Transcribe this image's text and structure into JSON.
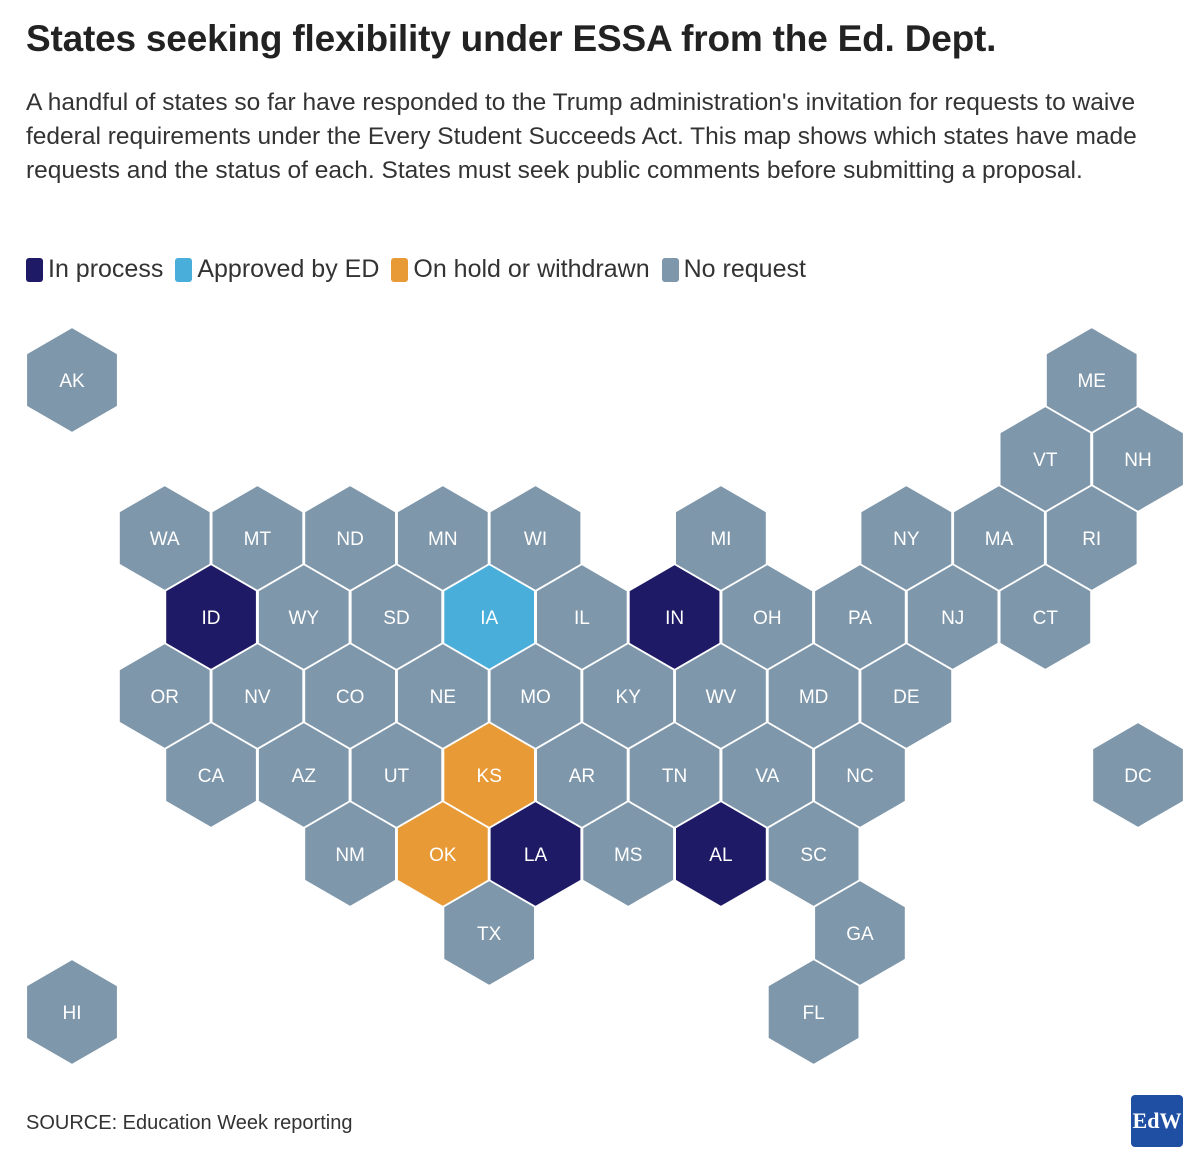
{
  "title": "States seeking flexibility under ESSA from the Ed. Dept.",
  "subtitle": "A handful of states so far have responded to the Trump administration's invitation for requests to waive federal requirements under the Every Student Succeeds Act. This map shows which states have made requests and the status of each. States must seek public comments before submitting a proposal.",
  "legend": [
    {
      "key": "in_process",
      "label": "In process",
      "color": "#1f1a66"
    },
    {
      "key": "approved",
      "label": "Approved by ED",
      "color": "#4aaedb"
    },
    {
      "key": "on_hold",
      "label": "On hold or withdrawn",
      "color": "#e89a36"
    },
    {
      "key": "no_request",
      "label": "No request",
      "color": "#7f97ab"
    }
  ],
  "states": [
    {
      "abbr": "AK",
      "status": "no_request",
      "col": 0,
      "row": 0
    },
    {
      "abbr": "ME",
      "status": "no_request",
      "col": 11,
      "row": 0
    },
    {
      "abbr": "VT",
      "status": "no_request",
      "col": 10,
      "row": 1
    },
    {
      "abbr": "NH",
      "status": "no_request",
      "col": 11,
      "row": 1
    },
    {
      "abbr": "WA",
      "status": "no_request",
      "col": 1,
      "row": 2
    },
    {
      "abbr": "MT",
      "status": "no_request",
      "col": 2,
      "row": 2
    },
    {
      "abbr": "ND",
      "status": "no_request",
      "col": 3,
      "row": 2
    },
    {
      "abbr": "MN",
      "status": "no_request",
      "col": 4,
      "row": 2
    },
    {
      "abbr": "WI",
      "status": "no_request",
      "col": 5,
      "row": 2
    },
    {
      "abbr": "MI",
      "status": "no_request",
      "col": 7,
      "row": 2
    },
    {
      "abbr": "NY",
      "status": "no_request",
      "col": 9,
      "row": 2
    },
    {
      "abbr": "MA",
      "status": "no_request",
      "col": 10,
      "row": 2
    },
    {
      "abbr": "RI",
      "status": "no_request",
      "col": 11,
      "row": 2
    },
    {
      "abbr": "ID",
      "status": "in_process",
      "col": 1,
      "row": 3
    },
    {
      "abbr": "WY",
      "status": "no_request",
      "col": 2,
      "row": 3
    },
    {
      "abbr": "SD",
      "status": "no_request",
      "col": 3,
      "row": 3
    },
    {
      "abbr": "IA",
      "status": "approved",
      "col": 4,
      "row": 3
    },
    {
      "abbr": "IL",
      "status": "no_request",
      "col": 5,
      "row": 3
    },
    {
      "abbr": "IN",
      "status": "in_process",
      "col": 6,
      "row": 3
    },
    {
      "abbr": "OH",
      "status": "no_request",
      "col": 7,
      "row": 3
    },
    {
      "abbr": "PA",
      "status": "no_request",
      "col": 8,
      "row": 3
    },
    {
      "abbr": "NJ",
      "status": "no_request",
      "col": 9,
      "row": 3
    },
    {
      "abbr": "CT",
      "status": "no_request",
      "col": 10,
      "row": 3
    },
    {
      "abbr": "OR",
      "status": "no_request",
      "col": 1,
      "row": 4
    },
    {
      "abbr": "NV",
      "status": "no_request",
      "col": 2,
      "row": 4
    },
    {
      "abbr": "CO",
      "status": "no_request",
      "col": 3,
      "row": 4
    },
    {
      "abbr": "NE",
      "status": "no_request",
      "col": 4,
      "row": 4
    },
    {
      "abbr": "MO",
      "status": "no_request",
      "col": 5,
      "row": 4
    },
    {
      "abbr": "KY",
      "status": "no_request",
      "col": 6,
      "row": 4
    },
    {
      "abbr": "WV",
      "status": "no_request",
      "col": 7,
      "row": 4
    },
    {
      "abbr": "MD",
      "status": "no_request",
      "col": 8,
      "row": 4
    },
    {
      "abbr": "DE",
      "status": "no_request",
      "col": 9,
      "row": 4
    },
    {
      "abbr": "CA",
      "status": "no_request",
      "col": 1,
      "row": 5
    },
    {
      "abbr": "AZ",
      "status": "no_request",
      "col": 2,
      "row": 5
    },
    {
      "abbr": "UT",
      "status": "no_request",
      "col": 3,
      "row": 5
    },
    {
      "abbr": "KS",
      "status": "on_hold",
      "col": 4,
      "row": 5
    },
    {
      "abbr": "AR",
      "status": "no_request",
      "col": 5,
      "row": 5
    },
    {
      "abbr": "TN",
      "status": "no_request",
      "col": 6,
      "row": 5
    },
    {
      "abbr": "VA",
      "status": "no_request",
      "col": 7,
      "row": 5
    },
    {
      "abbr": "NC",
      "status": "no_request",
      "col": 8,
      "row": 5
    },
    {
      "abbr": "DC",
      "status": "no_request",
      "col": 11,
      "row": 5
    },
    {
      "abbr": "NM",
      "status": "no_request",
      "col": 3,
      "row": 6
    },
    {
      "abbr": "OK",
      "status": "on_hold",
      "col": 4,
      "row": 6
    },
    {
      "abbr": "LA",
      "status": "in_process",
      "col": 5,
      "row": 6
    },
    {
      "abbr": "MS",
      "status": "no_request",
      "col": 6,
      "row": 6
    },
    {
      "abbr": "AL",
      "status": "in_process",
      "col": 7,
      "row": 6
    },
    {
      "abbr": "SC",
      "status": "no_request",
      "col": 8,
      "row": 6
    },
    {
      "abbr": "TX",
      "status": "no_request",
      "col": 4,
      "row": 7
    },
    {
      "abbr": "GA",
      "status": "no_request",
      "col": 8,
      "row": 7
    },
    {
      "abbr": "HI",
      "status": "no_request",
      "col": 0,
      "row": 8
    },
    {
      "abbr": "FL",
      "status": "no_request",
      "col": 8,
      "row": 8
    }
  ],
  "source": "SOURCE: Education Week reporting",
  "logo_text": "EdW"
}
